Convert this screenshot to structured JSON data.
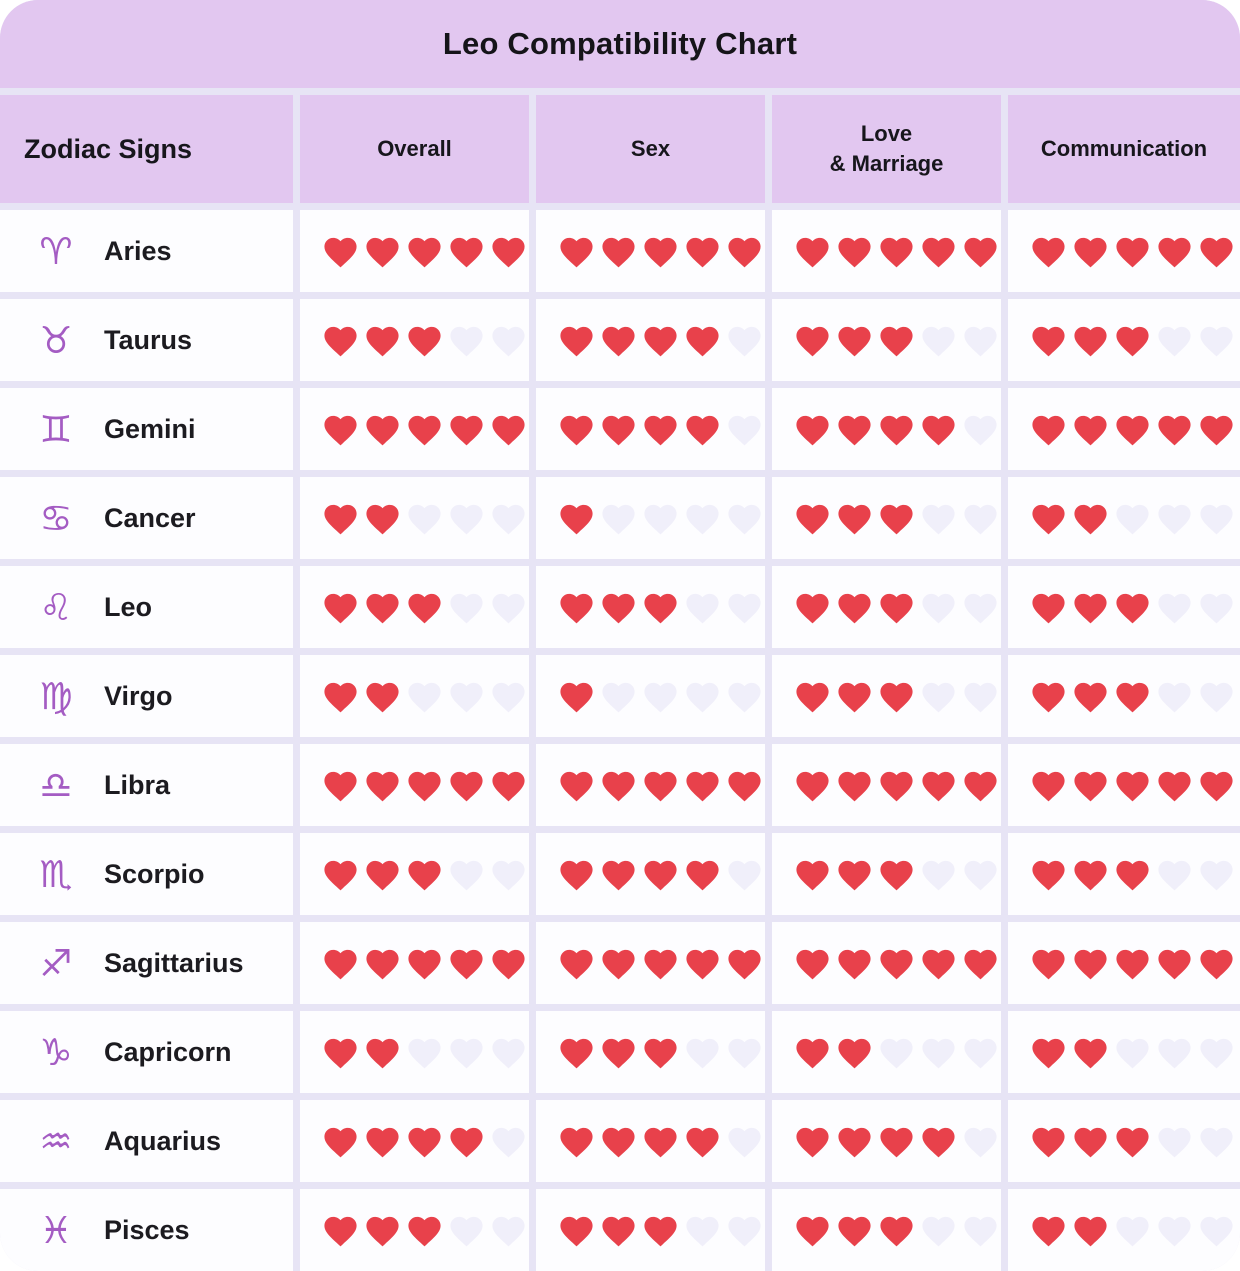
{
  "title": "Leo Compatibility Chart",
  "colors": {
    "header_bg": "#e2c7f0",
    "card_gap_bg": "#e7e4f5",
    "cell_bg": "#fdfdff",
    "heart_filled": "#e8414b",
    "heart_empty": "#f0effa",
    "zodiac_icon_purple": "#a45cc3",
    "text_dark": "#1c1b20"
  },
  "chart_data": {
    "type": "table",
    "title": "Leo Compatibility Chart",
    "columns": [
      "Zodiac Signs",
      "Overall",
      "Sex",
      "Love\n& Marriage",
      "Communication"
    ],
    "categories": [
      "Overall",
      "Sex",
      "Love & Marriage",
      "Communication"
    ],
    "max_rating": 5,
    "rating_unit": "hearts",
    "rows": [
      {
        "sign": "Aries",
        "symbol": "♈",
        "icon": "aries-icon",
        "ratings": [
          5,
          5,
          5,
          5
        ]
      },
      {
        "sign": "Taurus",
        "symbol": "♉",
        "icon": "taurus-icon",
        "ratings": [
          3,
          4,
          3,
          3
        ]
      },
      {
        "sign": "Gemini",
        "symbol": "♊",
        "icon": "gemini-icon",
        "ratings": [
          5,
          4,
          4,
          5
        ]
      },
      {
        "sign": "Cancer",
        "symbol": "♋",
        "icon": "cancer-icon",
        "ratings": [
          2,
          1,
          3,
          2
        ]
      },
      {
        "sign": "Leo",
        "symbol": "♌",
        "icon": "leo-icon",
        "ratings": [
          3,
          3,
          3,
          3
        ]
      },
      {
        "sign": "Virgo",
        "symbol": "♍",
        "icon": "virgo-icon",
        "ratings": [
          2,
          1,
          3,
          3
        ]
      },
      {
        "sign": "Libra",
        "symbol": "♎",
        "icon": "libra-icon",
        "ratings": [
          5,
          5,
          5,
          5
        ]
      },
      {
        "sign": "Scorpio",
        "symbol": "♏",
        "icon": "scorpio-icon",
        "ratings": [
          3,
          4,
          3,
          3
        ]
      },
      {
        "sign": "Sagittarius",
        "symbol": "♐",
        "icon": "sagittarius-icon",
        "ratings": [
          5,
          5,
          5,
          5
        ]
      },
      {
        "sign": "Capricorn",
        "symbol": "♑",
        "icon": "capricorn-icon",
        "ratings": [
          2,
          3,
          2,
          2
        ]
      },
      {
        "sign": "Aquarius",
        "symbol": "♒",
        "icon": "aquarius-icon",
        "ratings": [
          4,
          4,
          4,
          3
        ]
      },
      {
        "sign": "Pisces",
        "symbol": "♓",
        "icon": "pisces-icon",
        "ratings": [
          3,
          3,
          3,
          2
        ]
      }
    ]
  }
}
